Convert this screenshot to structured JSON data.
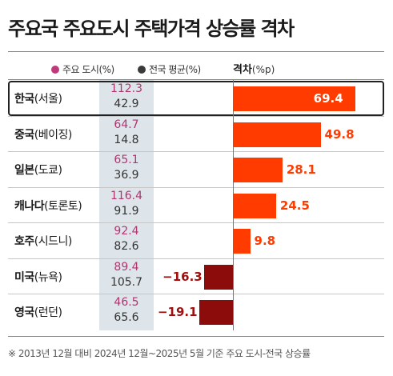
{
  "title": "주요국 주요도시 주택가격 상승률 격차",
  "legend": {
    "city": {
      "label": "주요 도시(%)",
      "color": "#c0397b"
    },
    "national": {
      "label": "전국 평균(%)",
      "color": "#3a3a3a"
    }
  },
  "gap_header": {
    "label": "격차",
    "unit": "(%p)"
  },
  "colors": {
    "positive_bar": "#ff3b00",
    "positive_label_inside": "#ffffff",
    "positive_label": "#ff3b00",
    "negative_bar": "#8c0b0b",
    "negative_label": "#a00f0f"
  },
  "footnote": "※ 2013년 12월 대비 2024년 12월~2025년 5월 기준 주요 도시-전국 상승률",
  "chart_data": {
    "type": "bar",
    "orientation": "horizontal",
    "categories": [
      "한국(서울)",
      "중국(베이징)",
      "일본(도쿄)",
      "캐나다(토론토)",
      "호주(시드니)",
      "미국(뉴욕)",
      "영국(런던)"
    ],
    "countries": [
      "한국",
      "중국",
      "일본",
      "캐나다",
      "호주",
      "미국",
      "영국"
    ],
    "cities": [
      "(서울)",
      "(베이징)",
      "(도쿄)",
      "(토론토)",
      "(시드니)",
      "(뉴욕)",
      "(런던)"
    ],
    "city_values": [
      "112.3",
      "64.7",
      "65.1",
      "116.4",
      "92.4",
      "89.4",
      "46.5"
    ],
    "national_values": [
      "42.9",
      "14.8",
      "36.9",
      "91.9",
      "82.6",
      "105.7",
      "65.6"
    ],
    "gap": {
      "values": [
        69.4,
        49.8,
        28.1,
        24.5,
        9.8,
        -16.3,
        -19.1
      ],
      "labels": [
        "69.4",
        "49.8",
        "28.1",
        "24.5",
        "9.8",
        "−16.3",
        "−19.1"
      ]
    },
    "highlight_index": 0,
    "xlim": [
      -19.1,
      69.4
    ]
  }
}
